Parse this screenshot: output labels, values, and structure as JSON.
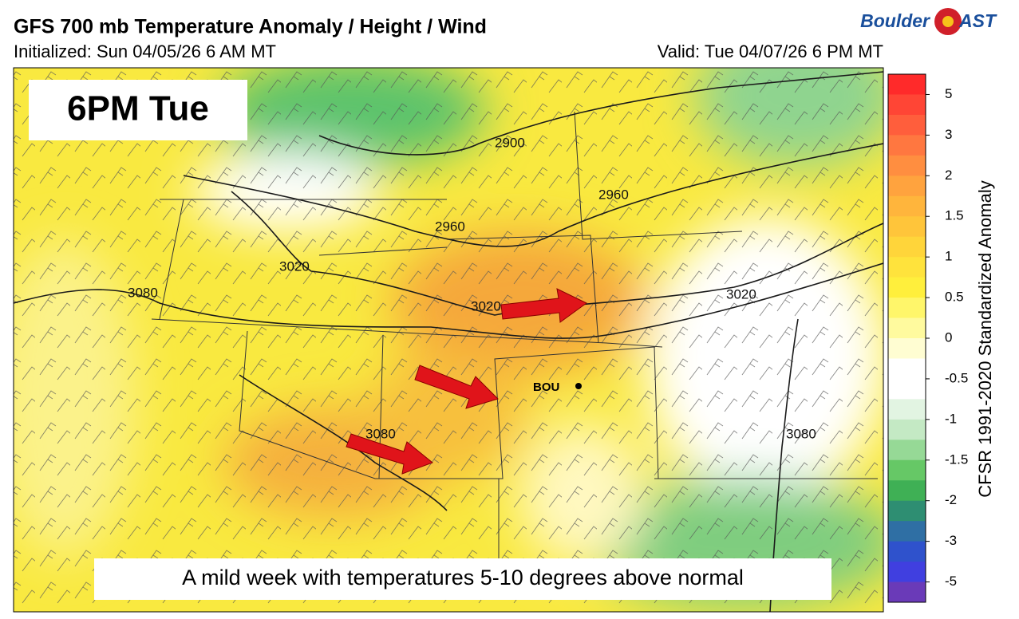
{
  "header": {
    "title": "GFS 700 mb Temperature Anomaly / Height / Wind",
    "initialized": "Initialized: Sun 04/05/26 6 AM MT",
    "valid": "Valid: Tue 04/07/26 6 PM MT",
    "logo_left": "Boulder",
    "logo_right": "AST"
  },
  "map": {
    "time_label": "6PM Tue",
    "caption": "A mild week with temperatures 5-10 degrees above normal",
    "station": "BOU",
    "contour_labels": [
      "2900",
      "2960",
      "2960",
      "3020",
      "3020",
      "3020",
      "3080",
      "3080",
      "3080"
    ]
  },
  "colorbar": {
    "label": "CFSR 1991-2020 Standardized Anomaly",
    "ticks": [
      5,
      3,
      2,
      1.5,
      1,
      0.5,
      0,
      -0.5,
      -1,
      -1.5,
      -2,
      -3,
      -5
    ],
    "colors": [
      "#ff2a2a",
      "#ff4535",
      "#ff5e3c",
      "#ff7740",
      "#ff8e40",
      "#ffa33e",
      "#ffb53c",
      "#ffc53a",
      "#ffd53a",
      "#ffe33c",
      "#ffef3c",
      "#fff66a",
      "#fffa9e",
      "#fffdd2",
      "#ffffff",
      "#ffffff",
      "#e2f4e2",
      "#c4e9c4",
      "#96d996",
      "#66c866",
      "#3fb055",
      "#2e8e72",
      "#2f6fa4",
      "#2f52cc",
      "#403fe0",
      "#6a3ab8"
    ]
  }
}
